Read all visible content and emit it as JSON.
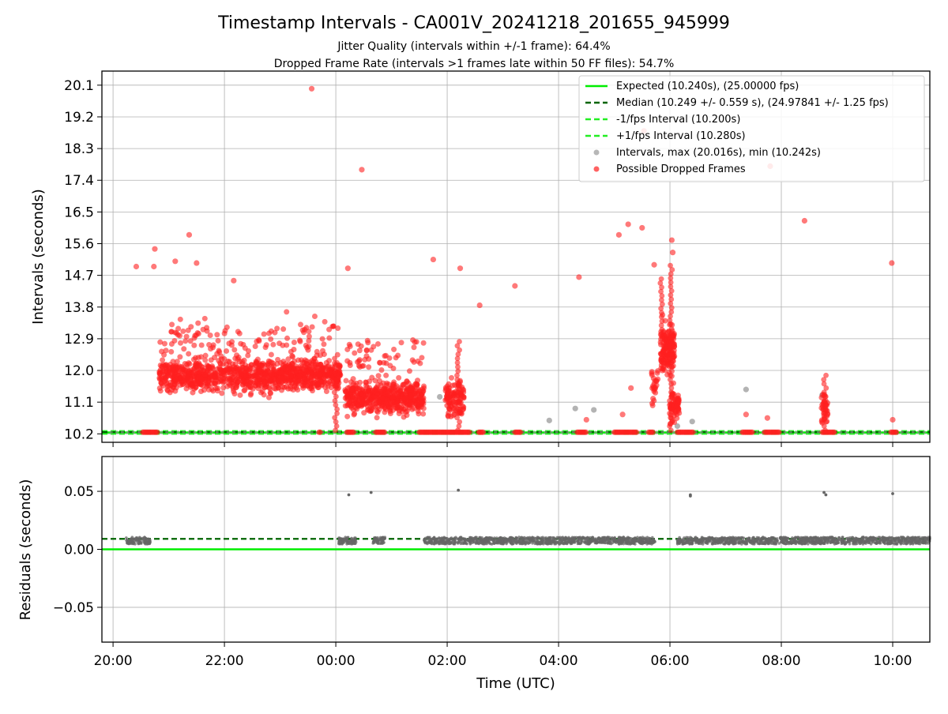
{
  "chart_data": {
    "type": "scatter",
    "title": "Timestamp Intervals - CA001V_20241218_201655_945999",
    "subtitle_lines": [
      "Jitter Quality (intervals within +/-1 frame): 64.4%",
      "Dropped Frame Rate (intervals >1 frames late within 50 FF files): 54.7%"
    ],
    "xlabel": "Time (UTC)",
    "x_ticks": [
      "20:00",
      "22:00",
      "00:00",
      "02:00",
      "04:00",
      "06:00",
      "08:00",
      "10:00"
    ],
    "top_panel": {
      "ylabel": "Intervals (seconds)",
      "y_ticks": [
        "10.2",
        "11.1",
        "12.0",
        "12.9",
        "13.8",
        "14.7",
        "15.6",
        "16.5",
        "17.4",
        "18.3",
        "19.2",
        "20.1"
      ],
      "grid": true,
      "legend_position": "upper right",
      "legend": [
        "Expected (10.240s), (25.00000 fps)",
        "Median (10.249 +/- 0.559 s), (24.97841 +/- 1.25 fps)",
        "-1/fps Interval (10.200s)",
        "+1/fps Interval (10.280s)",
        "Intervals, max (20.016s), min (10.242s)",
        "Possible Dropped Frames"
      ],
      "expected_interval": 10.24,
      "median_interval": 10.249,
      "minus_fps_interval": 10.2,
      "plus_fps_interval": 10.28,
      "max_interval": 20.016,
      "min_interval": 10.242,
      "gray_points": [
        [
          "01:52",
          11.25
        ],
        [
          "03:50",
          10.58
        ],
        [
          "04:18",
          10.92
        ],
        [
          "04:38",
          10.88
        ],
        [
          "06:24",
          10.55
        ],
        [
          "07:22",
          11.46
        ],
        [
          "08:44",
          11.3
        ],
        [
          "06:08",
          10.42
        ]
      ],
      "red_outliers": [
        [
          "20:25",
          14.95
        ],
        [
          "20:45",
          15.45
        ],
        [
          "20:44",
          14.95
        ],
        [
          "21:07",
          15.1
        ],
        [
          "21:22",
          15.85
        ],
        [
          "21:30",
          15.05
        ],
        [
          "22:10",
          14.55
        ],
        [
          "23:34",
          20.0
        ],
        [
          "00:28",
          17.7
        ],
        [
          "00:13",
          14.9
        ],
        [
          "01:45",
          15.15
        ],
        [
          "02:14",
          14.9
        ],
        [
          "02:35",
          13.85
        ],
        [
          "03:13",
          14.4
        ],
        [
          "04:22",
          14.65
        ],
        [
          "04:30",
          10.6
        ],
        [
          "05:05",
          15.85
        ],
        [
          "05:15",
          16.15
        ],
        [
          "05:18",
          11.5
        ],
        [
          "05:30",
          16.05
        ],
        [
          "05:32",
          18.8
        ],
        [
          "05:43",
          15.0
        ],
        [
          "06:02",
          15.7
        ],
        [
          "06:03",
          15.35
        ],
        [
          "05:09",
          10.75
        ],
        [
          "07:22",
          10.75
        ],
        [
          "07:45",
          10.65
        ],
        [
          "07:48",
          17.8
        ],
        [
          "08:25",
          16.25
        ],
        [
          "09:59",
          15.05
        ],
        [
          "10:00",
          10.6
        ]
      ],
      "red_baseline_segments": [
        [
          "20:32",
          "20:48"
        ],
        [
          "23:42",
          "23:44"
        ],
        [
          "00:12",
          "00:20"
        ],
        [
          "00:43",
          "00:53"
        ],
        [
          "01:30",
          "02:25"
        ],
        [
          "02:34",
          "02:40"
        ],
        [
          "03:13",
          "03:20"
        ],
        [
          "04:20",
          "04:30"
        ],
        [
          "05:00",
          "05:25"
        ],
        [
          "05:37",
          "05:43"
        ],
        [
          "06:08",
          "06:25"
        ],
        [
          "07:18",
          "07:30"
        ],
        [
          "07:42",
          "07:58"
        ],
        [
          "08:44",
          "08:58"
        ],
        [
          "09:58",
          "10:05"
        ]
      ]
    },
    "bottom_panel": {
      "ylabel": "Residuals (seconds)",
      "y_ticks": [
        "−0.05",
        "0.00",
        "0.05"
      ],
      "ylim": [
        -0.08,
        0.08
      ],
      "grid": true,
      "expected_residual": 0.0,
      "median_residual": 0.009,
      "outliers": [
        [
          "00:14",
          0.047
        ],
        [
          "00:38",
          0.049
        ],
        [
          "02:12",
          0.051
        ],
        [
          "06:22",
          0.046
        ],
        [
          "06:22",
          0.047
        ],
        [
          "08:46",
          0.049
        ],
        [
          "08:48",
          0.047
        ],
        [
          "10:00",
          0.048
        ]
      ],
      "clusters": [
        [
          "20:14",
          "20:40"
        ],
        [
          "00:03",
          "00:22"
        ],
        [
          "00:40",
          "00:53"
        ],
        [
          "01:35",
          "05:44"
        ],
        [
          "06:08",
          "10:40"
        ]
      ]
    },
    "colors": {
      "expected": "#00ee00",
      "median": "#006400",
      "fps_bounds": "#22ee22",
      "intervals": "#999999",
      "dropped": "#ff2020",
      "residual_points": "#666666"
    }
  }
}
